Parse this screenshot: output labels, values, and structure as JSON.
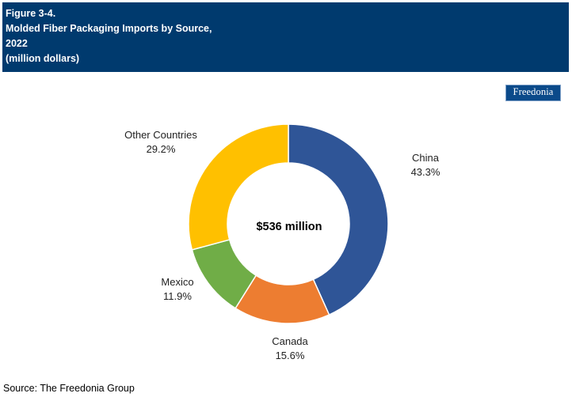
{
  "header": {
    "figure": "Figure 3-4.",
    "title_line1": "Molded Fiber Packaging Imports by Source,",
    "title_line2": "2022",
    "units": "(million dollars)"
  },
  "logo_text": "Freedonia",
  "colors": {
    "header_bg": "#003a6e",
    "China": "#2f5597",
    "Canada": "#ed7d31",
    "Mexico": "#70ad47",
    "Other Countries": "#ffc000"
  },
  "chart_data": {
    "type": "pie",
    "style": "donut",
    "categories": [
      "China",
      "Canada",
      "Mexico",
      "Other Countries"
    ],
    "values": [
      43.3,
      15.6,
      11.9,
      29.2
    ],
    "value_labels": [
      "43.3%",
      "15.6%",
      "11.9%",
      "29.2%"
    ],
    "center_label": "$536 million",
    "legend": "none"
  },
  "source": "Source: The Freedonia Group"
}
